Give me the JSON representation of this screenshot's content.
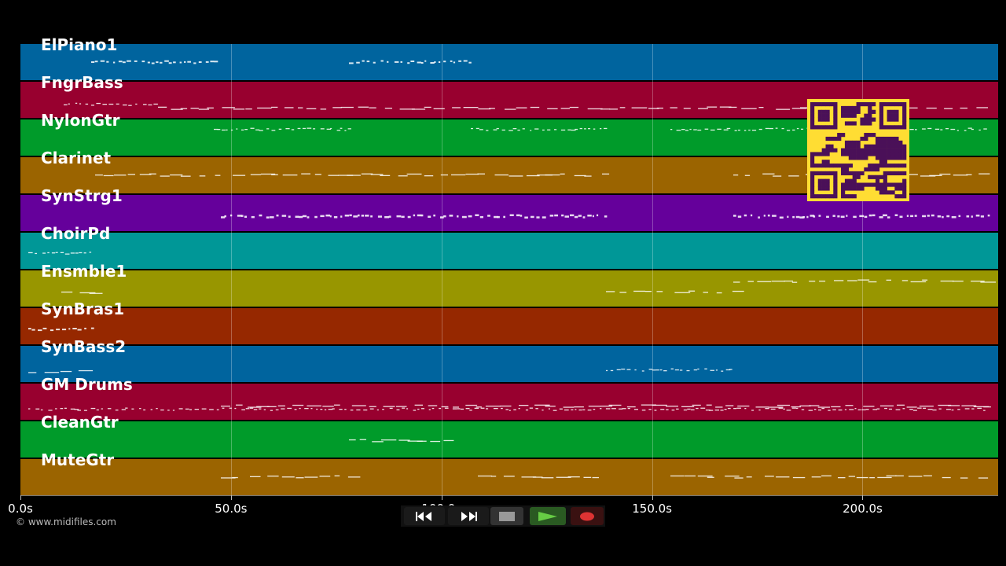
{
  "colors": {
    "background": "#000000",
    "lanes": [
      "#00649e",
      "#98002f",
      "#009b2a",
      "#9b6400",
      "#65009b",
      "#009797",
      "#989600",
      "#962800",
      "#00649e",
      "#98002f",
      "#009b2a",
      "#9b6400"
    ],
    "qr_fill": "#ffdd33",
    "qr_ink": "#4a1058",
    "play": "#66cc44",
    "record": "#dd3333"
  },
  "tracks": [
    {
      "name": "ElPiano1"
    },
    {
      "name": "FngrBass"
    },
    {
      "name": "NylonGtr"
    },
    {
      "name": "Clarinet"
    },
    {
      "name": "SynStrg1"
    },
    {
      "name": "ChoirPd"
    },
    {
      "name": "Ensmble1"
    },
    {
      "name": "SynBras1"
    },
    {
      "name": "SynBass2"
    },
    {
      "name": "GM Drums"
    },
    {
      "name": "CleanGtr"
    },
    {
      "name": "MuteGtr"
    }
  ],
  "timeline": {
    "max_seconds": 232.2,
    "ticks": [
      {
        "t": 0,
        "label": "0.0s"
      },
      {
        "t": 50,
        "label": "50.0s"
      },
      {
        "t": 100,
        "label": "100.0s"
      },
      {
        "t": 150,
        "label": "150.0s"
      },
      {
        "t": 200,
        "label": "200.0s"
      }
    ]
  },
  "footer": {
    "copyright": "© www.midifiles.com"
  },
  "transport": {
    "buttons": [
      {
        "name": "rewind",
        "icon": "rewind-icon"
      },
      {
        "name": "fast-forward",
        "icon": "fast-forward-icon"
      },
      {
        "name": "stop",
        "icon": "stop-icon"
      },
      {
        "name": "play",
        "icon": "play-icon"
      },
      {
        "name": "record",
        "icon": "record-icon"
      }
    ]
  }
}
